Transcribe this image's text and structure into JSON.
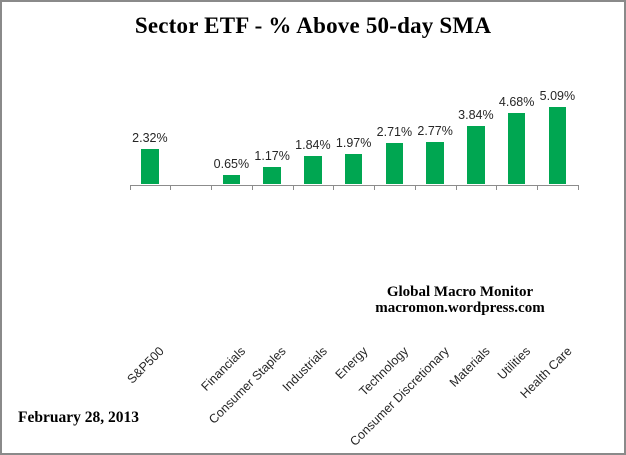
{
  "chart_data": {
    "type": "bar",
    "title": "Sector ETF - % Above 50-day SMA",
    "categories": [
      "S&P500",
      "Financials",
      "Consumer Staples",
      "Industrials",
      "Energy",
      "Technology",
      "Consumer Discretionary",
      "Materials",
      "Utilities",
      "Health Care"
    ],
    "values": [
      2.32,
      0.65,
      1.17,
      1.84,
      1.97,
      2.71,
      2.77,
      3.84,
      4.68,
      5.09
    ],
    "data_labels": [
      "2.32%",
      "0.65%",
      "1.17%",
      "1.84%",
      "1.97%",
      "2.71%",
      "2.77%",
      "3.84%",
      "4.68%",
      "5.09%"
    ],
    "xlabel": "",
    "ylabel": "",
    "ylim": [
      0,
      6
    ],
    "gridlines": false,
    "legend": false,
    "spacer_slot_after_first_category": true,
    "bar_color": "#00A651",
    "axis_color": "#8C8C8C",
    "text_color": "#262626"
  },
  "annotations": {
    "watermark_line1": "Global Macro Monitor",
    "watermark_line2": "macromon.wordpress.com",
    "date_label": "February 28, 2013"
  }
}
